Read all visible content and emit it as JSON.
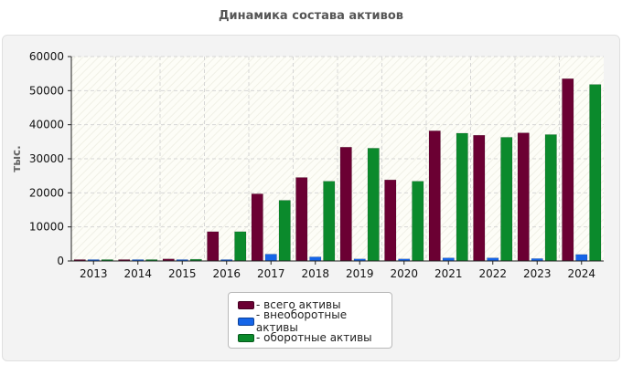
{
  "chart_data": {
    "type": "bar",
    "title": "Динамика состава активов",
    "xlabel": "",
    "ylabel": "тыс.",
    "ylim": [
      0,
      60000
    ],
    "yticks": [
      0,
      10000,
      20000,
      30000,
      40000,
      50000,
      60000
    ],
    "grid": true,
    "legend_position": "bottom",
    "categories": [
      "2013",
      "2014",
      "2015",
      "2016",
      "2017",
      "2018",
      "2019",
      "2020",
      "2021",
      "2022",
      "2023",
      "2024"
    ],
    "series": [
      {
        "name": "- всего активы",
        "color": "#6b0033",
        "values": [
          300,
          300,
          600,
          8600,
          19700,
          24500,
          33400,
          23800,
          38200,
          36900,
          37600,
          53500
        ]
      },
      {
        "name": "- внеоборотные активы",
        "color": "#1565e8",
        "values": [
          100,
          100,
          200,
          300,
          2000,
          1200,
          600,
          600,
          900,
          900,
          700,
          1900
        ]
      },
      {
        "name": "- оборотные активы",
        "color": "#0b8a2c",
        "values": [
          300,
          300,
          500,
          8600,
          17800,
          23400,
          33100,
          23400,
          37500,
          36300,
          37100,
          51800
        ]
      }
    ]
  }
}
